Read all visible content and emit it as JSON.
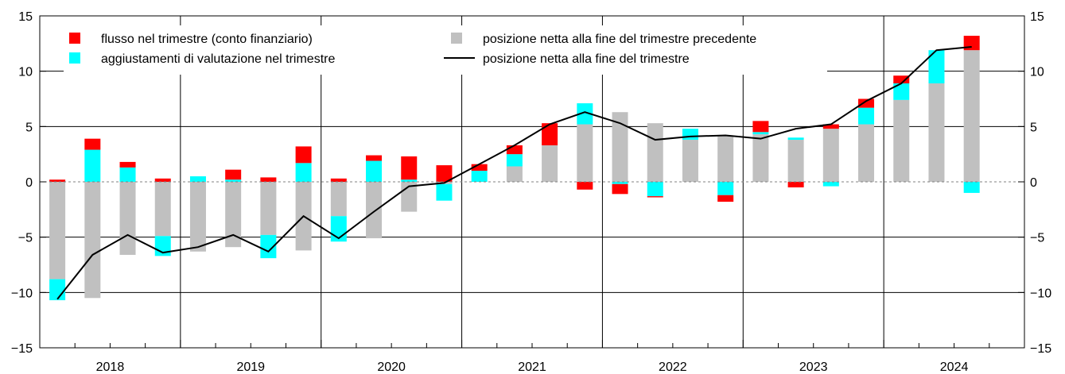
{
  "chart_data": {
    "type": "bar",
    "title": "",
    "xlabel": "",
    "ylabel": "",
    "ylim": [
      -15,
      15
    ],
    "yticks": [
      -15,
      -10,
      -5,
      0,
      5,
      10,
      15
    ],
    "ytick_labels": [
      "−15",
      "−10",
      "−5",
      "0",
      "5",
      "10",
      "15"
    ],
    "grid": true,
    "stacked": true,
    "legend_position": "top",
    "years": [
      "2018",
      "2019",
      "2020",
      "2021",
      "2022",
      "2023",
      "2024"
    ],
    "categories": [
      "2018 Q1",
      "2018 Q2",
      "2018 Q3",
      "2018 Q4",
      "2019 Q1",
      "2019 Q2",
      "2019 Q3",
      "2019 Q4",
      "2020 Q1",
      "2020 Q2",
      "2020 Q3",
      "2020 Q4",
      "2021 Q1",
      "2021 Q2",
      "2021 Q3",
      "2021 Q4",
      "2022 Q1",
      "2022 Q2",
      "2022 Q3",
      "2022 Q4",
      "2023 Q1",
      "2023 Q2",
      "2023 Q3",
      "2023 Q4",
      "2024 Q1",
      "2024 Q2",
      "2024 Q3"
    ],
    "series": [
      {
        "name": "posizione netta alla fine del trimestre precedente",
        "kind": "bar",
        "color": "#c0c0c0",
        "values": [
          -8.8,
          -10.5,
          -6.6,
          -4.9,
          -6.3,
          -5.9,
          -4.8,
          -6.2,
          -3.1,
          -5.1,
          -2.7,
          -0.2,
          0.0,
          1.4,
          3.3,
          5.2,
          6.3,
          5.3,
          3.8,
          4.2,
          4.3,
          3.8,
          4.8,
          5.2,
          7.4,
          8.9,
          11.9
        ]
      },
      {
        "name": "aggiustamenti di valutazione nel trimestre",
        "kind": "bar",
        "color": "#00ffff",
        "values": [
          -1.9,
          2.9,
          1.3,
          -1.8,
          0.5,
          0.2,
          -2.1,
          1.7,
          -2.3,
          1.9,
          0.2,
          -1.5,
          1.0,
          1.1,
          0.0,
          1.9,
          -0.2,
          -1.3,
          1.0,
          -1.2,
          0.2,
          0.2,
          -0.4,
          1.5,
          1.5,
          3.0,
          -1.0
        ]
      },
      {
        "name": "flusso nel trimestre (conto finanziario)",
        "kind": "bar",
        "color": "#ff0000",
        "values": [
          0.2,
          1.0,
          0.5,
          0.3,
          0.0,
          0.9,
          0.4,
          1.5,
          0.3,
          0.5,
          2.1,
          1.5,
          0.6,
          0.8,
          2.0,
          -0.7,
          -0.9,
          -0.1,
          0.0,
          -0.6,
          1.0,
          -0.5,
          0.4,
          0.8,
          0.7,
          0.0,
          1.3
        ]
      },
      {
        "name": "posizione netta alla fine del trimestre",
        "kind": "line",
        "color": "#000000",
        "values": [
          -10.6,
          -6.6,
          -4.8,
          -6.4,
          -5.9,
          -4.8,
          -6.3,
          -3.1,
          -5.1,
          -2.7,
          -0.4,
          -0.1,
          1.6,
          3.3,
          5.2,
          6.3,
          5.3,
          3.8,
          4.1,
          4.2,
          3.9,
          4.8,
          5.2,
          7.3,
          8.9,
          11.9,
          12.2
        ]
      }
    ]
  }
}
